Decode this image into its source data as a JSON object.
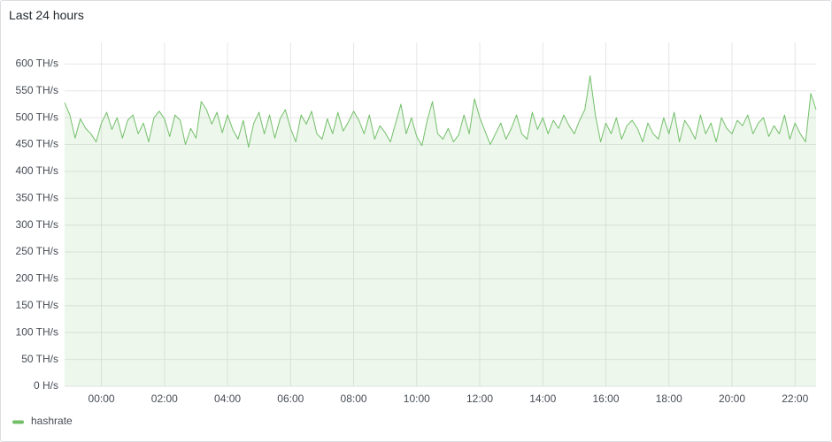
{
  "chart_data": {
    "type": "line",
    "title": "Last 24 hours",
    "x": [
      "22:50",
      "23:00",
      "23:10",
      "23:20",
      "23:30",
      "23:40",
      "23:50",
      "00:00",
      "00:10",
      "00:20",
      "00:30",
      "00:40",
      "00:50",
      "01:00",
      "01:10",
      "01:20",
      "01:30",
      "01:40",
      "01:50",
      "02:00",
      "02:10",
      "02:20",
      "02:30",
      "02:40",
      "02:50",
      "03:00",
      "03:10",
      "03:20",
      "03:30",
      "03:40",
      "03:50",
      "04:00",
      "04:10",
      "04:20",
      "04:30",
      "04:40",
      "04:50",
      "05:00",
      "05:10",
      "05:20",
      "05:30",
      "05:40",
      "05:50",
      "06:00",
      "06:10",
      "06:20",
      "06:30",
      "06:40",
      "06:50",
      "07:00",
      "07:10",
      "07:20",
      "07:30",
      "07:40",
      "07:50",
      "08:00",
      "08:10",
      "08:20",
      "08:30",
      "08:40",
      "08:50",
      "09:00",
      "09:10",
      "09:20",
      "09:30",
      "09:40",
      "09:50",
      "10:00",
      "10:10",
      "10:20",
      "10:30",
      "10:40",
      "10:50",
      "11:00",
      "11:10",
      "11:20",
      "11:30",
      "11:40",
      "11:50",
      "12:00",
      "12:10",
      "12:20",
      "12:30",
      "12:40",
      "12:50",
      "13:00",
      "13:10",
      "13:20",
      "13:30",
      "13:40",
      "13:50",
      "14:00",
      "14:10",
      "14:20",
      "14:30",
      "14:40",
      "14:50",
      "15:00",
      "15:10",
      "15:20",
      "15:30",
      "15:40",
      "15:50",
      "16:00",
      "16:10",
      "16:20",
      "16:30",
      "16:40",
      "16:50",
      "17:00",
      "17:10",
      "17:20",
      "17:30",
      "17:40",
      "17:50",
      "18:00",
      "18:10",
      "18:20",
      "18:30",
      "18:40",
      "18:50",
      "19:00",
      "19:10",
      "19:20",
      "19:30",
      "19:40",
      "19:50",
      "20:00",
      "20:10",
      "20:20",
      "20:30",
      "20:40",
      "20:50",
      "21:00",
      "21:10",
      "21:20",
      "21:30",
      "21:40",
      "21:50",
      "22:00",
      "22:10",
      "22:20",
      "22:30",
      "22:40"
    ],
    "series": [
      {
        "name": "hashrate",
        "color": "#73bf69",
        "values": [
          528,
          505,
          462,
          498,
          480,
          470,
          455,
          490,
          510,
          478,
          500,
          462,
          495,
          505,
          470,
          490,
          455,
          500,
          512,
          498,
          465,
          505,
          495,
          450,
          480,
          462,
          530,
          515,
          488,
          510,
          472,
          505,
          478,
          460,
          495,
          445,
          490,
          510,
          470,
          505,
          462,
          498,
          515,
          480,
          455,
          505,
          488,
          512,
          470,
          460,
          498,
          470,
          510,
          475,
          492,
          512,
          495,
          470,
          505,
          460,
          485,
          472,
          455,
          490,
          525,
          470,
          500,
          465,
          448,
          495,
          530,
          470,
          460,
          480,
          455,
          468,
          505,
          470,
          535,
          500,
          475,
          450,
          470,
          490,
          460,
          480,
          505,
          470,
          460,
          510,
          478,
          500,
          470,
          495,
          480,
          505,
          485,
          470,
          495,
          515,
          578,
          505,
          455,
          490,
          470,
          500,
          460,
          485,
          495,
          480,
          455,
          490,
          470,
          460,
          500,
          470,
          510,
          455,
          495,
          480,
          460,
          505,
          470,
          490,
          455,
          500,
          480,
          470,
          495,
          485,
          505,
          470,
          490,
          500,
          465,
          485,
          470,
          505,
          460,
          490,
          470,
          455,
          545,
          515
        ]
      }
    ],
    "ylim": [
      0,
      640
    ],
    "yticks": [
      {
        "value": 0,
        "label": "0 H/s"
      },
      {
        "value": 50,
        "label": "50 TH/s"
      },
      {
        "value": 100,
        "label": "100 TH/s"
      },
      {
        "value": 150,
        "label": "150 TH/s"
      },
      {
        "value": 200,
        "label": "200 TH/s"
      },
      {
        "value": 250,
        "label": "250 TH/s"
      },
      {
        "value": 300,
        "label": "300 TH/s"
      },
      {
        "value": 350,
        "label": "350 TH/s"
      },
      {
        "value": 400,
        "label": "400 TH/s"
      },
      {
        "value": 450,
        "label": "450 TH/s"
      },
      {
        "value": 500,
        "label": "500 TH/s"
      },
      {
        "value": 550,
        "label": "550 TH/s"
      },
      {
        "value": 600,
        "label": "600 TH/s"
      }
    ],
    "xticks": [
      "00:00",
      "02:00",
      "04:00",
      "06:00",
      "08:00",
      "10:00",
      "12:00",
      "14:00",
      "16:00",
      "18:00",
      "20:00",
      "22:00"
    ],
    "grid": true,
    "legend": "bottom-left"
  }
}
